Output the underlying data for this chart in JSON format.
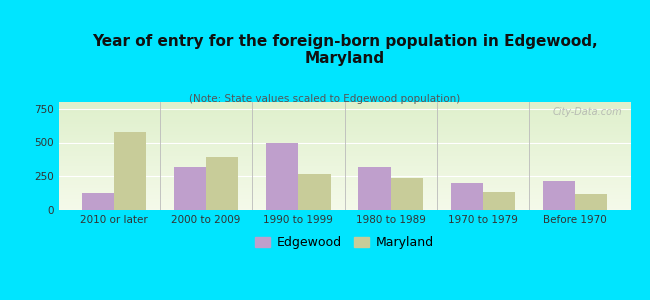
{
  "title": "Year of entry for the foreign-born population in Edgewood,\nMaryland",
  "subtitle": "(Note: State values scaled to Edgewood population)",
  "categories": [
    "2010 or later",
    "2000 to 2009",
    "1990 to 1999",
    "1980 to 1989",
    "1970 to 1979",
    "Before 1970"
  ],
  "edgewood_values": [
    125,
    320,
    500,
    320,
    200,
    215
  ],
  "maryland_values": [
    575,
    390,
    265,
    235,
    130,
    120
  ],
  "edgewood_color": "#bf9fcc",
  "maryland_color": "#c8cc99",
  "background_color": "#00e5ff",
  "ylim": [
    0,
    800
  ],
  "yticks": [
    0,
    250,
    500,
    750
  ],
  "bar_width": 0.35,
  "legend_labels": [
    "Edgewood",
    "Maryland"
  ],
  "title_fontsize": 11,
  "subtitle_fontsize": 7.5,
  "tick_fontsize": 7.5,
  "legend_fontsize": 9
}
